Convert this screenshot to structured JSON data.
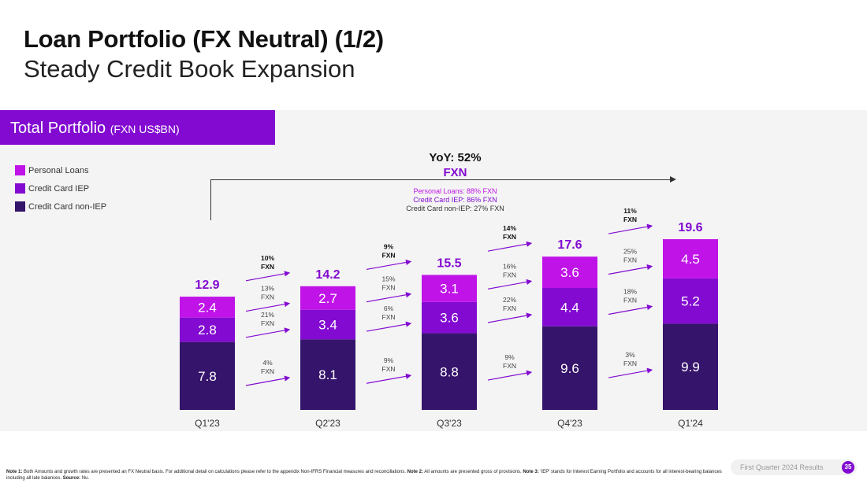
{
  "header": {
    "title": "Loan Portfolio (FX Neutral) (1/2)",
    "subtitle": "Steady Credit Book Expansion"
  },
  "section": {
    "title": "Total Portfolio",
    "unit": "(FXN US$BN)"
  },
  "yoy": {
    "label": "YoY: 52%",
    "fxn": "FXN",
    "details": [
      "Personal Loans: 88% FXN",
      "Credit Card IEP: 86% FXN",
      "Credit Card non-IEP: 27% FXN"
    ]
  },
  "chart_data": {
    "type": "bar",
    "stacked": true,
    "title": "Total Portfolio (FXN US$BN)",
    "categories": [
      "Q1'23",
      "Q2'23",
      "Q3'23",
      "Q4'23",
      "Q1'24"
    ],
    "series": [
      {
        "name": "Credit Card non-IEP",
        "color": "#35146B",
        "values": [
          7.8,
          8.1,
          8.8,
          9.6,
          9.9
        ]
      },
      {
        "name": "Credit Card IEP",
        "color": "#820AD1",
        "values": [
          2.8,
          3.4,
          3.6,
          4.4,
          5.2
        ]
      },
      {
        "name": "Personal Loans",
        "color": "#C013E8",
        "values": [
          2.4,
          2.7,
          3.1,
          3.6,
          4.5
        ]
      }
    ],
    "totals": [
      12.9,
      14.2,
      15.5,
      17.6,
      19.6
    ],
    "legend_order": [
      "Personal Loans",
      "Credit Card IEP",
      "Credit Card non-IEP"
    ],
    "legend_position": "top-left",
    "qoq_growth": [
      {
        "total": "10%",
        "personal": "13%",
        "iep": "21%",
        "noniep": "4%"
      },
      {
        "total": "9%",
        "personal": "15%",
        "iep": "6%",
        "noniep": "9%"
      },
      {
        "total": "14%",
        "personal": "16%",
        "iep": "22%",
        "noniep": "9%"
      },
      {
        "total": "11%",
        "personal": "25%",
        "iep": "18%",
        "noniep": "3%"
      }
    ],
    "growth_suffix": "FXN"
  },
  "footer": {
    "note_parts": [
      {
        "b": "Note 1:",
        "t": " Both Amounts and growth rates are presented an FX Neutral basis. For additional detail on calculations please refer to the appendix Non-IFRS Financial measures and reconciliations. "
      },
      {
        "b": "Note 2:",
        "t": " All amounts are presented gross of provisions. "
      },
      {
        "b": "Note 3:",
        "t": " 'IEP' stands for Interest Earning Portfolio and accounts for all interest-bearing balances including all late balances. "
      },
      {
        "b": "Source:",
        "t": " Nu."
      }
    ],
    "report": "First Quarter 2024 Results",
    "page": "35"
  }
}
